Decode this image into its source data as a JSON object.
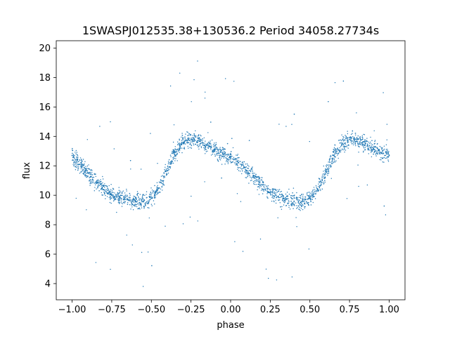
{
  "chart_data": {
    "type": "scatter",
    "title": "1SWASPJ012535.38+130536.2 Period 34058.27734s",
    "xlabel": "phase",
    "ylabel": "flux",
    "xlim": [
      -1.1,
      1.1
    ],
    "ylim": [
      2.9,
      20.5
    ],
    "grid": false,
    "legend": "none",
    "marker_color": "#1f77b4",
    "x_ticks": [
      -1.0,
      -0.75,
      -0.5,
      -0.25,
      0.0,
      0.25,
      0.5,
      0.75,
      1.0
    ],
    "x_tick_labels": [
      "−1.00",
      "−0.75",
      "−0.50",
      "−0.25",
      "0.00",
      "0.25",
      "0.50",
      "0.75",
      "1.00"
    ],
    "y_ticks": [
      4,
      6,
      8,
      10,
      12,
      14,
      16,
      18,
      20
    ],
    "y_tick_labels": [
      "4",
      "6",
      "8",
      "10",
      "12",
      "14",
      "16",
      "18",
      "20"
    ],
    "series": [
      {
        "x": [
          -1.0,
          -0.95,
          -0.9,
          -0.85,
          -0.8,
          -0.75,
          -0.7,
          -0.65,
          -0.6,
          -0.55,
          -0.5,
          -0.45,
          -0.4,
          -0.35,
          -0.3,
          -0.25,
          -0.2,
          -0.15,
          -0.1,
          -0.05,
          0.0,
          0.05,
          0.1,
          0.15,
          0.2,
          0.25,
          0.3,
          0.35,
          0.4,
          0.45,
          0.5,
          0.55,
          0.6,
          0.65,
          0.7,
          0.75,
          0.8,
          0.85,
          0.9,
          0.95,
          1.0
        ],
        "y": [
          12.7,
          12.1,
          11.5,
          10.9,
          10.4,
          10.0,
          9.9,
          9.7,
          9.6,
          9.6,
          9.8,
          10.5,
          11.7,
          12.9,
          13.6,
          13.8,
          13.7,
          13.4,
          13.1,
          12.8,
          12.6,
          12.2,
          11.7,
          11.2,
          10.7,
          10.2,
          9.9,
          9.7,
          9.6,
          9.6,
          9.8,
          10.4,
          11.6,
          12.7,
          13.4,
          13.8,
          13.8,
          13.5,
          13.2,
          12.9,
          12.7
        ]
      }
    ]
  }
}
